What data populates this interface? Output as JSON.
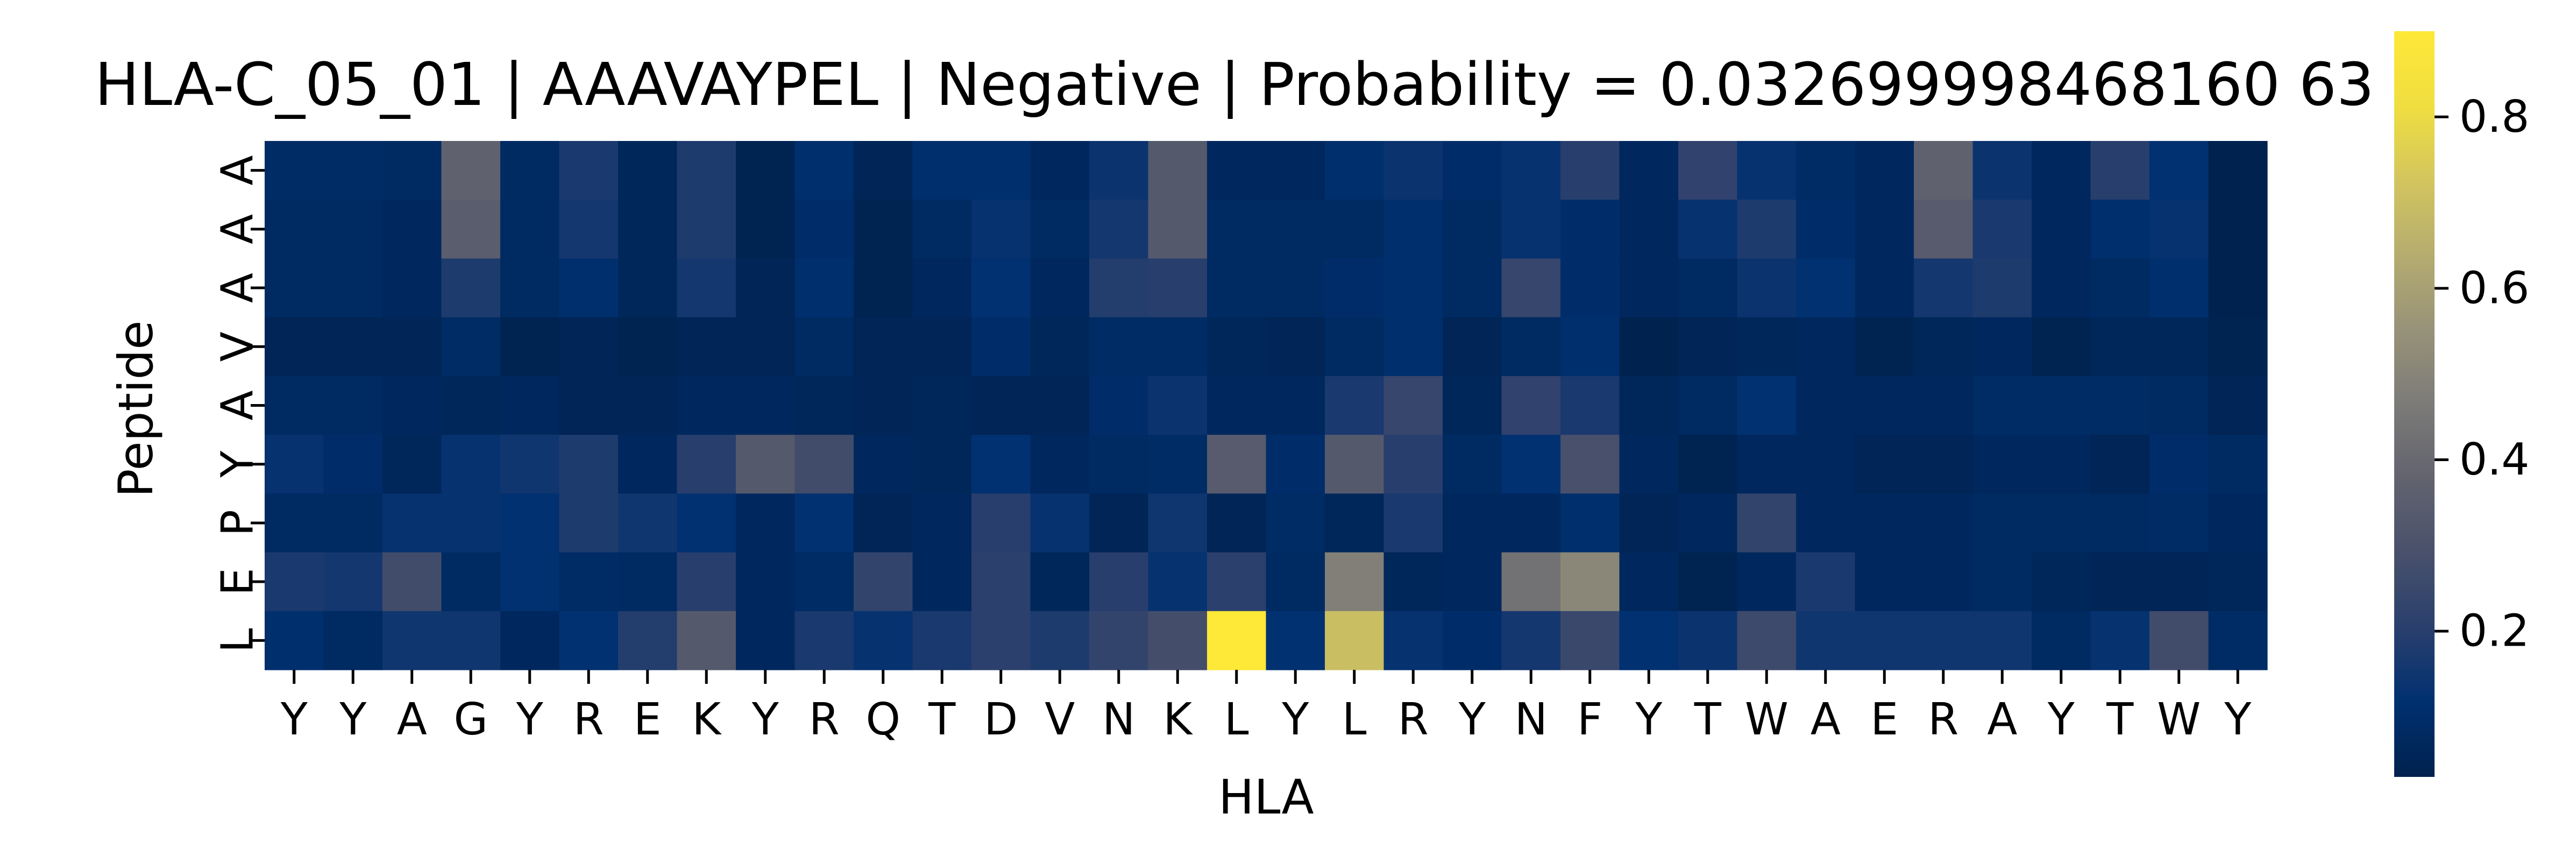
{
  "chart_data": {
    "type": "heatmap",
    "title": "HLA-C_05_01 | AAAVAYPEL | Negative | Probability = 0.032699998468160 63",
    "xlabel": "HLA",
    "ylabel": "Peptide",
    "x_categories": [
      "Y",
      "Y",
      "A",
      "G",
      "Y",
      "R",
      "E",
      "K",
      "Y",
      "R",
      "Q",
      "T",
      "D",
      "V",
      "N",
      "K",
      "L",
      "Y",
      "L",
      "R",
      "Y",
      "N",
      "F",
      "Y",
      "T",
      "W",
      "A",
      "E",
      "R",
      "A",
      "Y",
      "T",
      "W",
      "Y"
    ],
    "y_categories": [
      "A",
      "A",
      "A",
      "V",
      "A",
      "Y",
      "P",
      "E",
      "L"
    ],
    "colormap": "cividis",
    "vmin": 0.03,
    "vmax": 0.9,
    "colorbar_ticks": [
      "0.2",
      "0.4",
      "0.6",
      "0.8"
    ],
    "colorbar_tick_values": [
      0.2,
      0.4,
      0.6,
      0.8
    ],
    "values": [
      [
        0.09,
        0.09,
        0.08,
        0.37,
        0.08,
        0.17,
        0.06,
        0.18,
        0.04,
        0.11,
        0.05,
        0.11,
        0.11,
        0.07,
        0.14,
        0.33,
        0.07,
        0.07,
        0.11,
        0.14,
        0.1,
        0.13,
        0.2,
        0.07,
        0.22,
        0.13,
        0.09,
        0.07,
        0.37,
        0.14,
        0.07,
        0.2,
        0.12,
        0.03
      ],
      [
        0.08,
        0.08,
        0.07,
        0.35,
        0.08,
        0.16,
        0.06,
        0.18,
        0.04,
        0.1,
        0.04,
        0.08,
        0.13,
        0.08,
        0.16,
        0.33,
        0.08,
        0.08,
        0.08,
        0.11,
        0.08,
        0.13,
        0.1,
        0.07,
        0.13,
        0.18,
        0.1,
        0.07,
        0.34,
        0.17,
        0.07,
        0.11,
        0.13,
        0.03
      ],
      [
        0.08,
        0.08,
        0.07,
        0.18,
        0.08,
        0.11,
        0.06,
        0.16,
        0.05,
        0.11,
        0.04,
        0.07,
        0.12,
        0.07,
        0.19,
        0.2,
        0.08,
        0.08,
        0.1,
        0.11,
        0.08,
        0.24,
        0.1,
        0.07,
        0.08,
        0.14,
        0.12,
        0.07,
        0.16,
        0.18,
        0.07,
        0.08,
        0.11,
        0.03
      ],
      [
        0.05,
        0.05,
        0.05,
        0.09,
        0.04,
        0.05,
        0.04,
        0.05,
        0.05,
        0.08,
        0.05,
        0.05,
        0.1,
        0.06,
        0.09,
        0.09,
        0.06,
        0.05,
        0.08,
        0.11,
        0.05,
        0.08,
        0.11,
        0.03,
        0.05,
        0.06,
        0.07,
        0.04,
        0.06,
        0.07,
        0.04,
        0.06,
        0.06,
        0.04
      ],
      [
        0.08,
        0.08,
        0.07,
        0.06,
        0.07,
        0.05,
        0.05,
        0.07,
        0.07,
        0.06,
        0.05,
        0.06,
        0.05,
        0.05,
        0.1,
        0.14,
        0.07,
        0.07,
        0.17,
        0.24,
        0.06,
        0.22,
        0.17,
        0.06,
        0.08,
        0.12,
        0.07,
        0.07,
        0.07,
        0.09,
        0.09,
        0.09,
        0.08,
        0.05
      ],
      [
        0.13,
        0.1,
        0.06,
        0.13,
        0.15,
        0.18,
        0.07,
        0.2,
        0.33,
        0.27,
        0.07,
        0.06,
        0.12,
        0.07,
        0.08,
        0.09,
        0.34,
        0.1,
        0.33,
        0.2,
        0.08,
        0.12,
        0.29,
        0.07,
        0.04,
        0.07,
        0.07,
        0.05,
        0.05,
        0.07,
        0.07,
        0.05,
        0.1,
        0.08
      ],
      [
        0.08,
        0.08,
        0.13,
        0.13,
        0.12,
        0.18,
        0.15,
        0.12,
        0.07,
        0.12,
        0.05,
        0.07,
        0.2,
        0.13,
        0.05,
        0.15,
        0.05,
        0.09,
        0.06,
        0.17,
        0.07,
        0.07,
        0.11,
        0.05,
        0.07,
        0.23,
        0.07,
        0.07,
        0.07,
        0.08,
        0.08,
        0.08,
        0.09,
        0.07
      ],
      [
        0.17,
        0.16,
        0.27,
        0.08,
        0.12,
        0.09,
        0.08,
        0.2,
        0.07,
        0.09,
        0.23,
        0.07,
        0.21,
        0.06,
        0.2,
        0.13,
        0.21,
        0.08,
        0.48,
        0.06,
        0.07,
        0.43,
        0.51,
        0.07,
        0.04,
        0.07,
        0.17,
        0.07,
        0.07,
        0.08,
        0.06,
        0.05,
        0.05,
        0.06
      ],
      [
        0.11,
        0.08,
        0.15,
        0.15,
        0.07,
        0.12,
        0.19,
        0.33,
        0.07,
        0.17,
        0.13,
        0.17,
        0.21,
        0.18,
        0.23,
        0.28,
        0.9,
        0.12,
        0.7,
        0.13,
        0.1,
        0.16,
        0.25,
        0.12,
        0.14,
        0.26,
        0.15,
        0.15,
        0.15,
        0.15,
        0.08,
        0.13,
        0.27,
        0.09
      ]
    ]
  }
}
